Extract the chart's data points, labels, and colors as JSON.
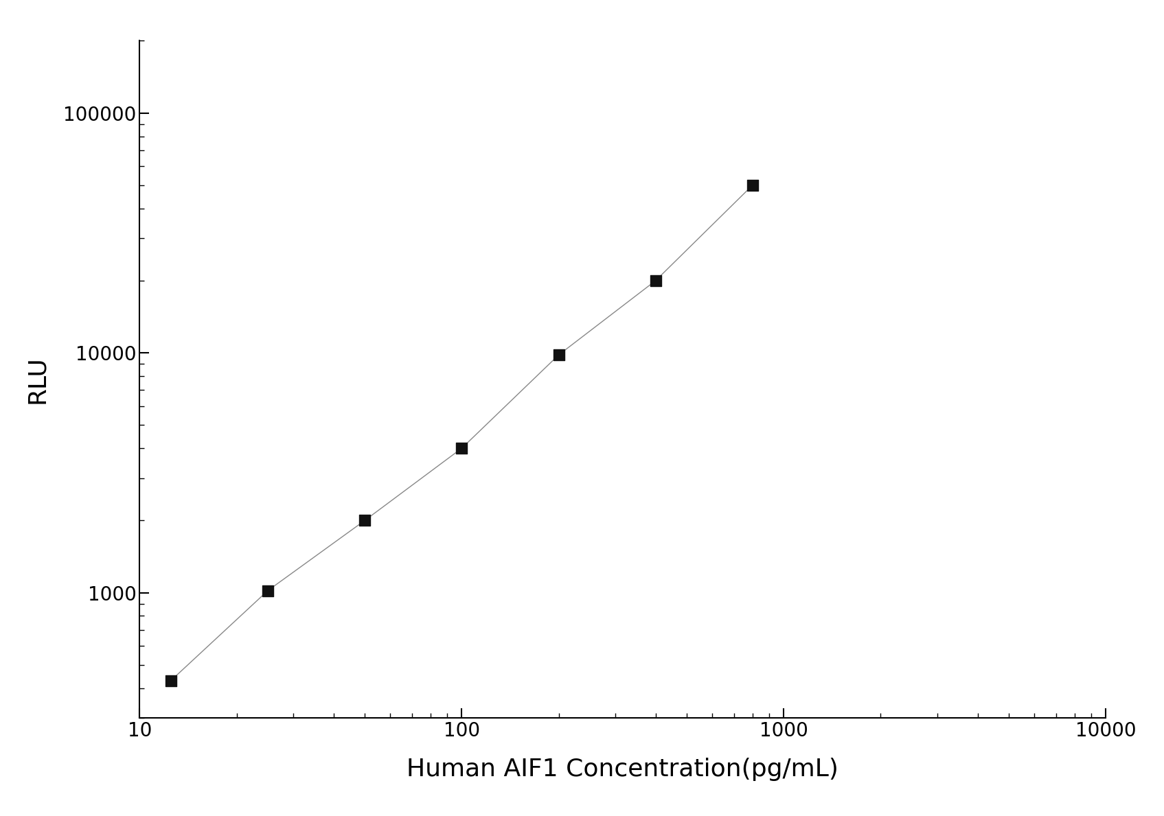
{
  "x": [
    12.5,
    25,
    50,
    100,
    200,
    400,
    800
  ],
  "y": [
    430,
    1020,
    2000,
    4000,
    9800,
    20000,
    50000
  ],
  "xlabel": "Human AIF1 Concentration(pg/mL)",
  "ylabel": "RLU",
  "xlim": [
    10,
    10000
  ],
  "ylim": [
    300,
    200000
  ],
  "marker": "s",
  "marker_color": "#111111",
  "marker_size": 11,
  "line_color": "#888888",
  "line_style": "-",
  "line_width": 1.0,
  "background_color": "#ffffff",
  "tick_color": "#000000",
  "xlabel_fontsize": 26,
  "ylabel_fontsize": 26,
  "tick_fontsize": 20,
  "ytick_labels": [
    "1000",
    "10000",
    "100000"
  ],
  "ytick_values": [
    1000,
    10000,
    100000
  ],
  "xtick_labels": [
    "10",
    "100",
    "1000",
    "10000"
  ],
  "xtick_values": [
    10,
    100,
    1000,
    10000
  ]
}
